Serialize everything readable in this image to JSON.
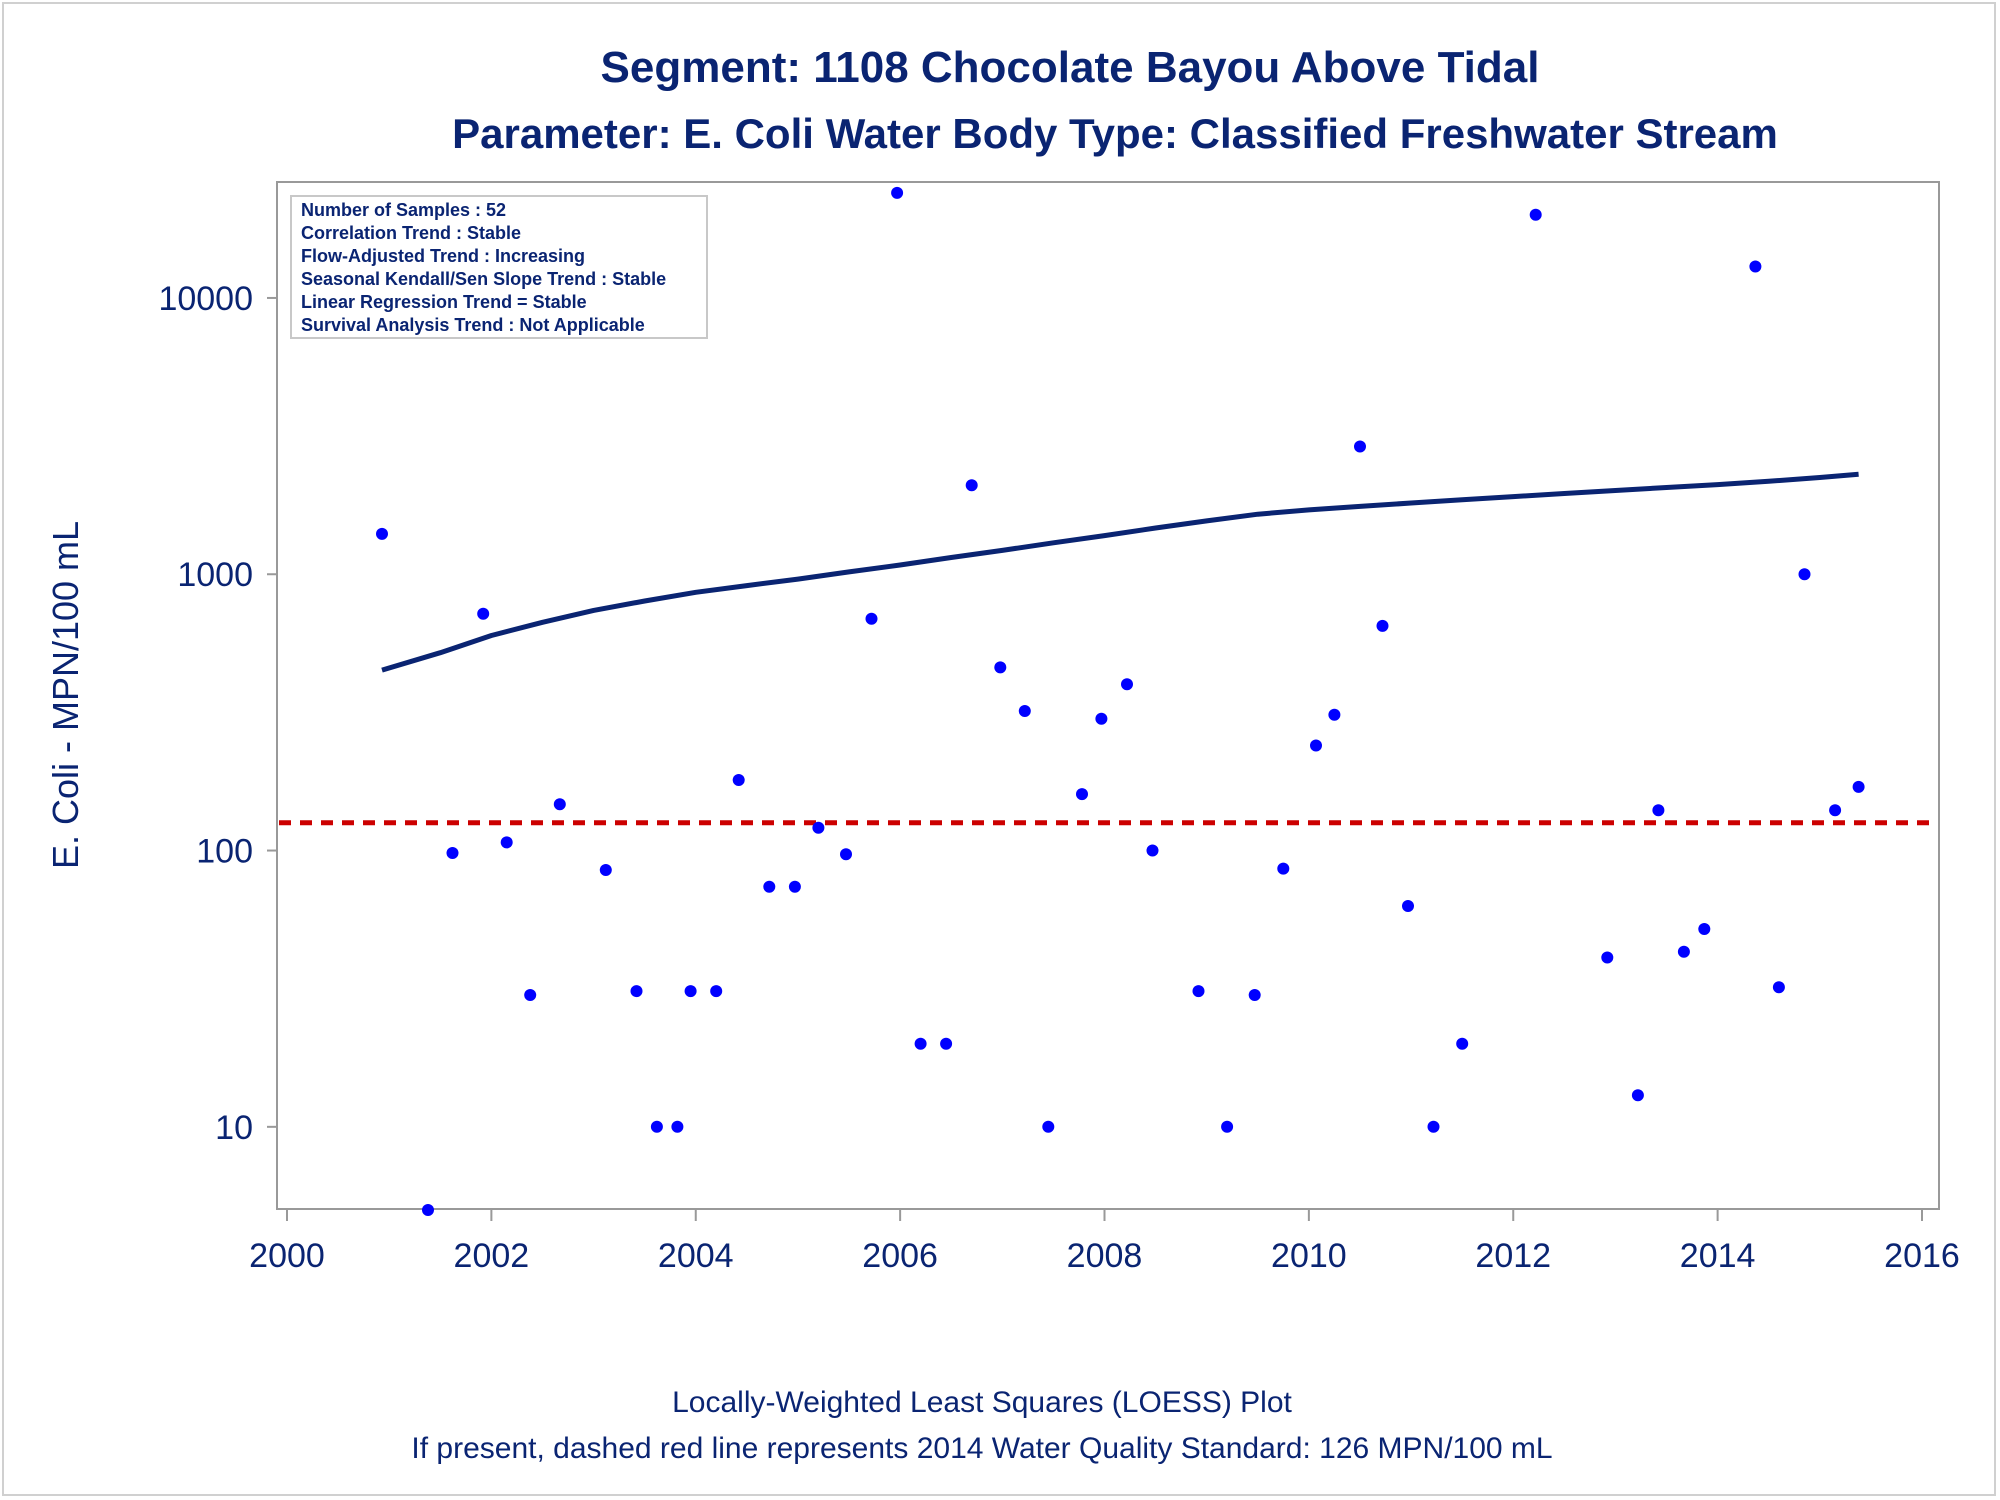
{
  "chart_data": {
    "type": "scatter",
    "title": "Segment: 1108  Chocolate Bayou Above Tidal",
    "subtitle": "Parameter: E. Coli   Water Body Type: Classified Freshwater Stream",
    "xlabel": "",
    "ylabel": "E. Coli - MPN/100 mL",
    "xlim": [
      2000,
      2016
    ],
    "ylim": [
      5,
      25000
    ],
    "yscale": "log",
    "x_ticks": [
      2000,
      2002,
      2004,
      2006,
      2008,
      2010,
      2012,
      2014,
      2016
    ],
    "y_ticks": [
      10,
      100,
      1000,
      10000
    ],
    "grid": false,
    "stats_box": [
      "Number of Samples : 52",
      "Correlation Trend : Stable",
      "Flow-Adjusted Trend : Increasing",
      "Seasonal Kendall/Sen Slope Trend : Stable",
      "Linear Regression Trend = Stable",
      "Survival Analysis Trend : Not Applicable"
    ],
    "points": [
      [
        2000.93,
        1400
      ],
      [
        2001.38,
        5
      ],
      [
        2001.62,
        98
      ],
      [
        2001.92,
        720
      ],
      [
        2002.15,
        107
      ],
      [
        2002.38,
        30
      ],
      [
        2002.67,
        147
      ],
      [
        2003.12,
        85
      ],
      [
        2003.42,
        31
      ],
      [
        2003.62,
        10
      ],
      [
        2003.82,
        10
      ],
      [
        2003.95,
        31
      ],
      [
        2004.2,
        31
      ],
      [
        2004.42,
        180
      ],
      [
        2004.72,
        74
      ],
      [
        2004.97,
        74
      ],
      [
        2005.2,
        121
      ],
      [
        2005.47,
        97
      ],
      [
        2005.72,
        690
      ],
      [
        2005.97,
        24000
      ],
      [
        2006.2,
        20
      ],
      [
        2006.45,
        20
      ],
      [
        2006.7,
        2100
      ],
      [
        2006.98,
        460
      ],
      [
        2007.22,
        320
      ],
      [
        2007.45,
        10
      ],
      [
        2007.78,
        160
      ],
      [
        2007.97,
        300
      ],
      [
        2008.22,
        400
      ],
      [
        2008.47,
        100
      ],
      [
        2008.92,
        31
      ],
      [
        2009.2,
        10
      ],
      [
        2009.47,
        30
      ],
      [
        2009.75,
        86
      ],
      [
        2010.07,
        240
      ],
      [
        2010.25,
        310
      ],
      [
        2010.5,
        2900
      ],
      [
        2010.72,
        650
      ],
      [
        2010.97,
        63
      ],
      [
        2011.22,
        10
      ],
      [
        2011.5,
        20
      ],
      [
        2012.22,
        20000
      ],
      [
        2012.92,
        41
      ],
      [
        2013.22,
        13
      ],
      [
        2013.42,
        140
      ],
      [
        2013.67,
        43
      ],
      [
        2013.87,
        52
      ],
      [
        2014.37,
        13000
      ],
      [
        2014.6,
        32
      ],
      [
        2014.85,
        1000
      ],
      [
        2015.15,
        140
      ],
      [
        2015.38,
        170
      ]
    ],
    "loess_line": [
      [
        2000.93,
        450
      ],
      [
        2001.5,
        520
      ],
      [
        2002,
        600
      ],
      [
        2002.5,
        670
      ],
      [
        2003,
        740
      ],
      [
        2003.5,
        800
      ],
      [
        2004,
        860
      ],
      [
        2004.5,
        910
      ],
      [
        2005,
        960
      ],
      [
        2005.5,
        1020
      ],
      [
        2006,
        1080
      ],
      [
        2006.5,
        1150
      ],
      [
        2007,
        1220
      ],
      [
        2007.5,
        1300
      ],
      [
        2008,
        1380
      ],
      [
        2008.5,
        1470
      ],
      [
        2009,
        1560
      ],
      [
        2009.5,
        1650
      ],
      [
        2010,
        1710
      ],
      [
        2010.5,
        1760
      ],
      [
        2011,
        1810
      ],
      [
        2011.5,
        1860
      ],
      [
        2012,
        1910
      ],
      [
        2012.5,
        1960
      ],
      [
        2013,
        2010
      ],
      [
        2013.5,
        2060
      ],
      [
        2014,
        2110
      ],
      [
        2014.5,
        2170
      ],
      [
        2015,
        2240
      ],
      [
        2015.38,
        2300
      ]
    ],
    "standard_line": {
      "value": 126,
      "color": "#cc0000"
    },
    "colors": {
      "points": "#0000ff",
      "loess": "#0a2472",
      "text": "#0a2472",
      "axis": "#999999"
    }
  },
  "footer": {
    "line1": "Locally-Weighted Least Squares (LOESS) Plot",
    "line2": "If present, dashed red line represents 2014 Water Quality Standard: 126 MPN/100 mL"
  }
}
